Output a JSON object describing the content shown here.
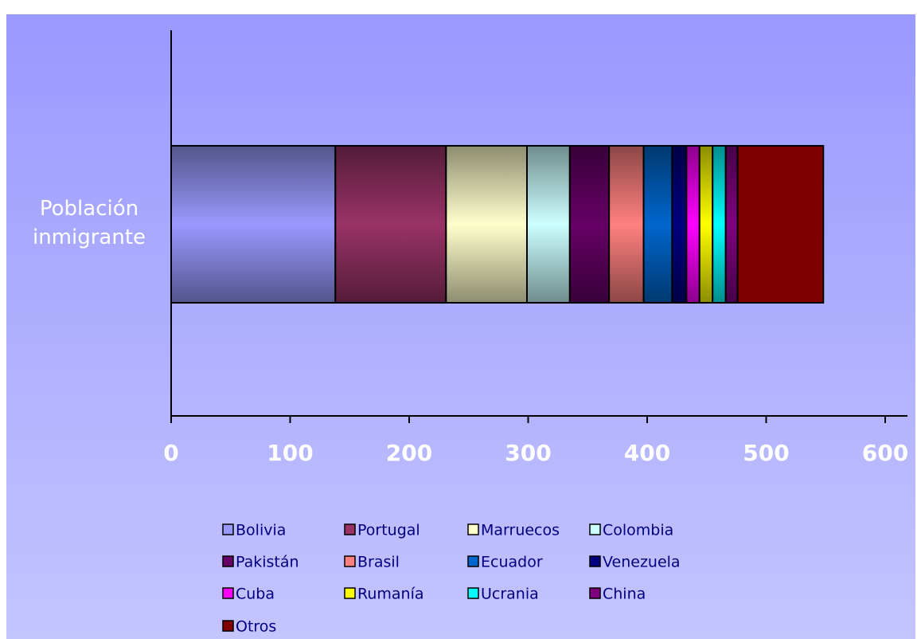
{
  "chart_data": {
    "type": "bar",
    "orientation": "horizontal",
    "stacked": true,
    "categories": [
      "Población inmigrante"
    ],
    "series": [
      {
        "name": "Bolivia",
        "color": "#9999ff",
        "values": [
          138
        ]
      },
      {
        "name": "Portugal",
        "color": "#993366",
        "values": [
          93
        ]
      },
      {
        "name": "Marruecos",
        "color": "#ffffcc",
        "values": [
          68
        ]
      },
      {
        "name": "Colombia",
        "color": "#ccffff",
        "values": [
          36
        ]
      },
      {
        "name": "Pakistán",
        "color": "#660066",
        "values": [
          33
        ]
      },
      {
        "name": "Brasil",
        "color": "#ff8080",
        "values": [
          29
        ]
      },
      {
        "name": "Ecuador",
        "color": "#0066cc",
        "values": [
          24
        ]
      },
      {
        "name": "Venezuela",
        "color": "#000080",
        "values": [
          12
        ]
      },
      {
        "name": "Cuba",
        "color": "#ff00ff",
        "values": [
          11
        ]
      },
      {
        "name": "Rumanía",
        "color": "#ffff00",
        "values": [
          11
        ]
      },
      {
        "name": "Ucrania",
        "color": "#00ffff",
        "values": [
          11
        ]
      },
      {
        "name": "China",
        "color": "#800080",
        "values": [
          10
        ]
      },
      {
        "name": "Otros",
        "color": "#800000",
        "values": [
          72
        ]
      }
    ],
    "xlim": [
      0,
      600
    ],
    "xticks": [
      0,
      100,
      200,
      300,
      400,
      500,
      600
    ],
    "legend": "bottom"
  }
}
